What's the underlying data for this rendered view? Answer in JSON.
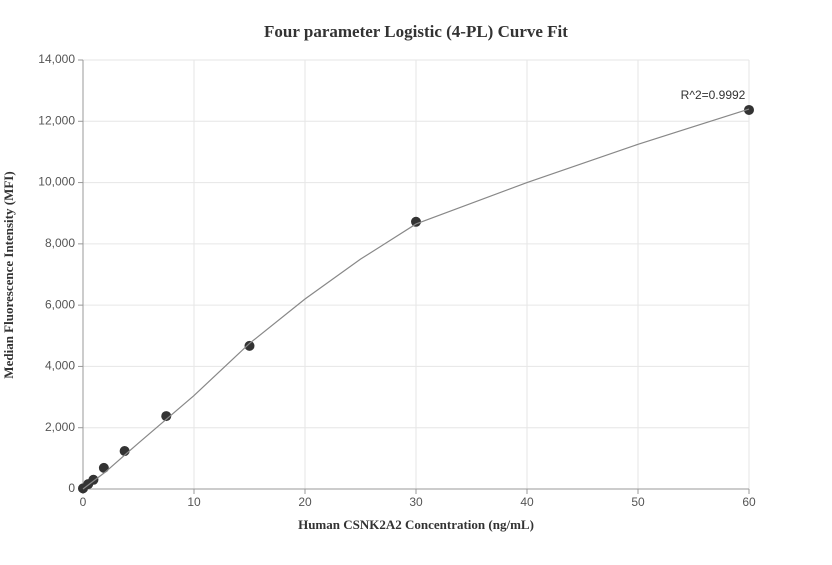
{
  "chart_data": {
    "type": "scatter",
    "title": "Four parameter Logistic (4-PL) Curve Fit",
    "x_label": "Human CSNK2A2 Concentration (ng/mL)",
    "y_label": "Median Fluorescence Intensity (MFI)",
    "annotation": "R^2=0.9992",
    "xlim": [
      0,
      60
    ],
    "xticks": [
      0,
      10,
      20,
      30,
      40,
      50,
      60
    ],
    "ylim": [
      0,
      14000
    ],
    "yticks": [
      0,
      {
        "value": 2000,
        "label": "2,000"
      },
      {
        "value": 4000,
        "label": "4,000"
      },
      {
        "value": 6000,
        "label": "6,000"
      },
      {
        "value": 8000,
        "label": "8,000"
      },
      {
        "value": 10000,
        "label": "10,000"
      },
      {
        "value": 12000,
        "label": "12,000"
      },
      {
        "value": 14000,
        "label": "14,000"
      }
    ],
    "grid": true,
    "series": [
      {
        "color": "#333333",
        "x": [
          0,
          0.47,
          0.94,
          1.88,
          3.75,
          7.5,
          15,
          30,
          60
        ],
        "values": [
          20,
          160,
          300,
          690,
          1240,
          2380,
          4670,
          8720,
          12370
        ]
      },
      {
        "color": "#888888",
        "line": true,
        "x": [
          0,
          2,
          5,
          10,
          15,
          20,
          25,
          30,
          40,
          50,
          60
        ],
        "values": [
          0,
          550,
          1500,
          3050,
          4750,
          6200,
          7500,
          8650,
          10000,
          11250,
          12400
        ]
      }
    ]
  }
}
